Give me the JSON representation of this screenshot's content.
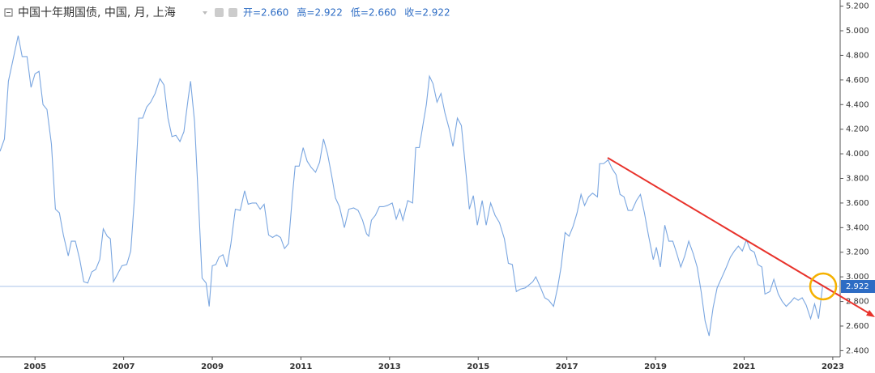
{
  "chart_data": {
    "type": "line",
    "title": "中国十年期国债, 中国, 月, 上海",
    "ohlc": [
      "开=2.660",
      "高=2.922",
      "低=2.660",
      "收=2.922"
    ],
    "x": [
      2004.21,
      2004.31,
      2004.4,
      2004.62,
      2004.71,
      2004.82,
      2004.91,
      2005.0,
      2005.09,
      2005.18,
      2005.27,
      2005.37,
      2005.46,
      2005.55,
      2005.64,
      2005.75,
      2005.82,
      2005.91,
      2006.01,
      2006.1,
      2006.19,
      2006.28,
      2006.37,
      2006.46,
      2006.54,
      2006.63,
      2006.7,
      2006.77,
      2006.86,
      2006.96,
      2007.07,
      2007.16,
      2007.25,
      2007.34,
      2007.43,
      2007.52,
      2007.61,
      2007.71,
      2007.82,
      2007.91,
      2008.0,
      2008.09,
      2008.18,
      2008.27,
      2008.36,
      2008.46,
      2008.51,
      2008.6,
      2008.69,
      2008.77,
      2008.86,
      2008.93,
      2009.0,
      2009.08,
      2009.15,
      2009.24,
      2009.33,
      2009.42,
      2009.52,
      2009.63,
      2009.73,
      2009.81,
      2009.9,
      2009.99,
      2010.08,
      2010.17,
      2010.27,
      2010.36,
      2010.45,
      2010.54,
      2010.63,
      2010.72,
      2010.81,
      2010.87,
      2010.96,
      2011.05,
      2011.14,
      2011.23,
      2011.33,
      2011.42,
      2011.51,
      2011.6,
      2011.69,
      2011.78,
      2011.87,
      2011.98,
      2012.08,
      2012.19,
      2012.29,
      2012.39,
      2012.48,
      2012.53,
      2012.59,
      2012.68,
      2012.77,
      2012.86,
      2012.95,
      2013.06,
      2013.15,
      2013.23,
      2013.3,
      2013.41,
      2013.52,
      2013.59,
      2013.67,
      2013.76,
      2013.83,
      2013.9,
      2013.98,
      2014.07,
      2014.16,
      2014.25,
      2014.34,
      2014.43,
      2014.53,
      2014.62,
      2014.71,
      2014.8,
      2014.89,
      2014.98,
      2015.09,
      2015.18,
      2015.28,
      2015.38,
      2015.48,
      2015.59,
      2015.68,
      2015.77,
      2015.86,
      2015.95,
      2016.06,
      2016.13,
      2016.23,
      2016.3,
      2016.41,
      2016.5,
      2016.59,
      2016.7,
      2016.79,
      2016.87,
      2016.96,
      2017.05,
      2017.14,
      2017.23,
      2017.32,
      2017.4,
      2017.49,
      2017.58,
      2017.69,
      2017.74,
      2017.83,
      2017.93,
      2018.02,
      2018.11,
      2018.2,
      2018.29,
      2018.38,
      2018.47,
      2018.57,
      2018.66,
      2018.75,
      2018.84,
      2018.95,
      2019.02,
      2019.11,
      2019.21,
      2019.3,
      2019.39,
      2019.48,
      2019.57,
      2019.66,
      2019.75,
      2019.85,
      2019.94,
      2020.03,
      2020.12,
      2020.21,
      2020.3,
      2020.39,
      2020.49,
      2020.6,
      2020.69,
      2020.78,
      2020.87,
      2020.96,
      2021.05,
      2021.14,
      2021.23,
      2021.31,
      2021.4,
      2021.47,
      2021.58,
      2021.67,
      2021.77,
      2021.86,
      2021.95,
      2022.06,
      2022.13,
      2022.22,
      2022.31,
      2022.4,
      2022.5,
      2022.59,
      2022.68,
      2022.77
    ],
    "series": [
      {
        "color": "#7aa6e0",
        "values": [
          4.02,
          4.12,
          4.59,
          4.96,
          4.79,
          4.79,
          4.54,
          4.65,
          4.67,
          4.4,
          4.36,
          4.08,
          3.55,
          3.52,
          3.34,
          3.17,
          3.29,
          3.29,
          3.14,
          2.96,
          2.95,
          3.04,
          3.06,
          3.14,
          3.39,
          3.33,
          3.31,
          2.96,
          3.02,
          3.09,
          3.1,
          3.21,
          3.67,
          4.29,
          4.29,
          4.38,
          4.42,
          4.49,
          4.61,
          4.56,
          4.29,
          4.14,
          4.15,
          4.1,
          4.18,
          4.46,
          4.59,
          4.26,
          3.6,
          2.99,
          2.95,
          2.76,
          3.09,
          3.1,
          3.16,
          3.18,
          3.08,
          3.27,
          3.55,
          3.54,
          3.7,
          3.59,
          3.6,
          3.6,
          3.55,
          3.59,
          3.34,
          3.32,
          3.34,
          3.32,
          3.23,
          3.27,
          3.67,
          3.9,
          3.9,
          4.05,
          3.94,
          3.89,
          3.85,
          3.93,
          4.12,
          4.0,
          3.83,
          3.64,
          3.57,
          3.4,
          3.55,
          3.56,
          3.54,
          3.46,
          3.35,
          3.33,
          3.46,
          3.5,
          3.57,
          3.57,
          3.58,
          3.6,
          3.47,
          3.55,
          3.46,
          3.62,
          3.6,
          4.05,
          4.05,
          4.25,
          4.4,
          4.63,
          4.57,
          4.42,
          4.49,
          4.33,
          4.21,
          4.06,
          4.29,
          4.23,
          3.9,
          3.55,
          3.66,
          3.42,
          3.62,
          3.42,
          3.6,
          3.5,
          3.44,
          3.31,
          3.11,
          3.1,
          2.88,
          2.9,
          2.91,
          2.93,
          2.96,
          3.0,
          2.91,
          2.83,
          2.81,
          2.76,
          2.91,
          3.08,
          3.36,
          3.33,
          3.41,
          3.52,
          3.67,
          3.58,
          3.65,
          3.68,
          3.65,
          3.92,
          3.92,
          3.95,
          3.88,
          3.83,
          3.67,
          3.65,
          3.54,
          3.54,
          3.62,
          3.67,
          3.52,
          3.34,
          3.14,
          3.24,
          3.08,
          3.42,
          3.29,
          3.29,
          3.19,
          3.08,
          3.17,
          3.29,
          3.19,
          3.08,
          2.88,
          2.64,
          2.52,
          2.75,
          2.91,
          2.99,
          3.08,
          3.16,
          3.21,
          3.25,
          3.21,
          3.3,
          3.22,
          3.2,
          3.1,
          3.08,
          2.86,
          2.88,
          2.98,
          2.86,
          2.8,
          2.76,
          2.8,
          2.83,
          2.81,
          2.83,
          2.77,
          2.66,
          2.78,
          2.66,
          2.922
        ]
      }
    ],
    "last_value": 2.922,
    "last_label": "2.922",
    "xlim": [
      2004.21,
      2023.13
    ],
    "xticks": [
      2005,
      2007,
      2009,
      2011,
      2013,
      2015,
      2017,
      2019,
      2021,
      2023
    ],
    "ylim": [
      2.35,
      5.25
    ],
    "yticks": [
      {
        "value": 2.4,
        "label": "2.400"
      },
      {
        "value": 2.6,
        "label": "2.600"
      },
      {
        "value": 2.8,
        "label": "2.800"
      },
      {
        "value": 3.0,
        "label": "3.000"
      },
      {
        "value": 3.2,
        "label": "3.200"
      },
      {
        "value": 3.4,
        "label": "3.400"
      },
      {
        "value": 3.6,
        "label": "3.600"
      },
      {
        "value": 3.8,
        "label": "3.800"
      },
      {
        "value": 4.0,
        "label": "4.000"
      },
      {
        "value": 4.2,
        "label": "4.200"
      },
      {
        "value": 4.4,
        "label": "4.400"
      },
      {
        "value": 4.6,
        "label": "4.600"
      },
      {
        "value": 4.8,
        "label": "4.800"
      },
      {
        "value": 5.0,
        "label": "5.000"
      },
      {
        "value": 5.2,
        "label": "5.200"
      }
    ],
    "grid": false
  }
}
